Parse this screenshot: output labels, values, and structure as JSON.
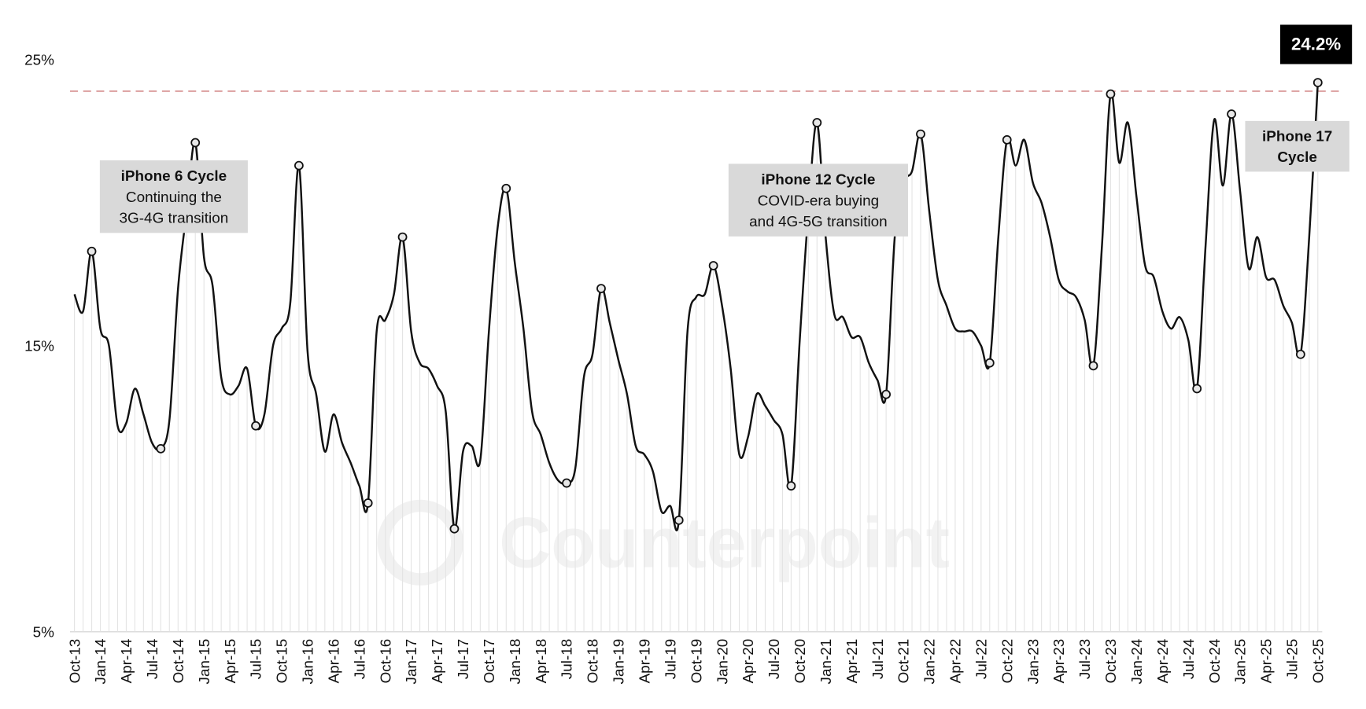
{
  "chart_data": {
    "type": "line",
    "categories": [
      "Oct-13",
      null,
      null,
      "Jan-14",
      null,
      null,
      "Apr-14",
      null,
      null,
      "Jul-14",
      null,
      null,
      "Oct-14",
      null,
      null,
      "Jan-15",
      null,
      null,
      "Apr-15",
      null,
      null,
      "Jul-15",
      null,
      null,
      "Oct-15",
      null,
      null,
      "Jan-16",
      null,
      null,
      "Apr-16",
      null,
      null,
      "Jul-16",
      null,
      null,
      "Oct-16",
      null,
      null,
      "Jan-17",
      null,
      null,
      "Apr-17",
      null,
      null,
      "Jul-17",
      null,
      null,
      "Oct-17",
      null,
      null,
      "Jan-18",
      null,
      null,
      "Apr-18",
      null,
      null,
      "Jul-18",
      null,
      null,
      "Oct-18",
      null,
      null,
      "Jan-19",
      null,
      null,
      "Apr-19",
      null,
      null,
      "Jul-19",
      null,
      null,
      "Oct-19",
      null,
      null,
      "Jan-20",
      null,
      null,
      "Apr-20",
      null,
      null,
      "Jul-20",
      null,
      null,
      "Oct-20",
      null,
      null,
      "Jan-21",
      null,
      null,
      "Apr-21",
      null,
      null,
      "Jul-21",
      null,
      null,
      "Oct-21",
      null,
      null,
      "Jan-22",
      null,
      null,
      "Apr-22",
      null,
      null,
      "Jul-22",
      null,
      null,
      "Oct-22",
      null,
      null,
      "Jan-23",
      null,
      null,
      "Apr-23",
      null,
      null,
      "Jul-23",
      null,
      null,
      "Oct-23",
      null,
      null,
      "Jan-24",
      null,
      null,
      "Apr-24",
      null,
      null,
      "Jul-24",
      null,
      null,
      "Oct-24",
      null,
      null,
      "Jan-25",
      null,
      null,
      "Apr-25",
      null,
      null,
      "Jul-25",
      null,
      null,
      "Oct-25"
    ],
    "values": [
      16.8,
      16.2,
      18.3,
      15.6,
      15.0,
      12.2,
      12.3,
      13.5,
      12.6,
      11.6,
      11.4,
      12.4,
      17.0,
      19.7,
      22.1,
      18.1,
      17.1,
      13.9,
      13.3,
      13.6,
      14.2,
      12.2,
      12.6,
      15.0,
      15.6,
      16.5,
      21.3,
      14.8,
      13.3,
      11.3,
      12.6,
      11.6,
      10.9,
      10.1,
      9.5,
      15.5,
      15.9,
      16.8,
      18.8,
      15.5,
      14.4,
      14.2,
      13.6,
      12.7,
      8.6,
      11.3,
      11.5,
      11.0,
      15.5,
      19.1,
      20.5,
      17.9,
      15.6,
      12.7,
      11.9,
      10.9,
      10.3,
      10.2,
      10.7,
      13.9,
      14.7,
      17.0,
      15.8,
      14.5,
      13.3,
      11.5,
      11.2,
      10.6,
      9.2,
      9.4,
      8.9,
      15.5,
      16.7,
      16.8,
      17.8,
      16.4,
      14.2,
      11.2,
      11.8,
      13.3,
      12.9,
      12.4,
      11.9,
      10.1,
      15.2,
      19.7,
      22.8,
      18.8,
      16.1,
      16.0,
      15.3,
      15.3,
      14.4,
      13.8,
      13.3,
      18.8,
      20.7,
      21.1,
      22.4,
      19.7,
      17.3,
      16.4,
      15.6,
      15.5,
      15.5,
      15.0,
      14.4,
      18.8,
      22.2,
      21.3,
      22.2,
      20.7,
      20.0,
      18.8,
      17.3,
      16.9,
      16.7,
      15.9,
      14.3,
      18.5,
      23.8,
      21.4,
      22.8,
      20.2,
      17.8,
      17.4,
      16.2,
      15.6,
      16.0,
      15.2,
      13.5,
      18.5,
      22.9,
      20.6,
      23.1,
      20.4,
      17.7,
      18.8,
      17.4,
      17.3,
      16.4,
      15.8,
      14.7,
      18.8,
      24.2
    ],
    "value_labels": [
      null,
      null,
      null,
      null,
      null,
      null,
      null,
      null,
      null,
      null,
      null,
      null,
      null,
      null,
      null,
      null,
      null,
      null,
      null,
      null,
      null,
      null,
      null,
      null,
      null,
      null,
      null,
      null,
      null,
      null,
      null,
      null,
      null,
      null,
      null,
      null,
      null,
      null,
      null,
      null,
      null,
      null,
      null,
      null,
      null,
      null,
      null,
      null,
      null,
      null,
      null,
      null,
      null,
      null,
      null,
      null,
      null,
      null,
      null,
      null,
      null,
      null,
      null,
      null,
      null,
      null,
      null,
      null,
      null,
      null,
      null,
      null,
      null,
      null,
      null,
      null,
      null,
      null,
      null,
      null,
      null,
      null,
      null,
      null,
      null,
      null,
      null,
      null,
      null,
      null,
      null,
      null,
      null,
      null,
      null,
      null,
      null,
      null,
      null,
      null,
      null,
      null,
      null,
      null,
      null,
      null,
      null,
      null,
      null,
      null,
      null,
      null,
      null,
      null,
      null,
      null,
      null,
      null,
      null,
      null,
      null,
      null,
      null,
      null,
      null,
      null,
      null,
      null,
      null,
      null,
      null,
      null,
      null,
      null,
      null,
      null,
      null,
      null,
      null,
      null,
      null,
      null,
      null,
      null,
      "24.2%"
    ],
    "color": "#111111",
    "marker_indices": [
      2,
      10,
      14,
      21,
      26,
      34,
      38,
      44,
      50,
      57,
      61,
      70,
      74,
      83,
      86,
      94,
      98,
      106,
      108,
      118,
      120,
      130,
      134,
      142,
      144
    ],
    "ylim": [
      5,
      25
    ],
    "yticks": [
      {
        "value": 5,
        "label": "5%"
      },
      {
        "value": 15,
        "label": "15%"
      },
      {
        "value": 25,
        "label": "25%"
      }
    ],
    "reference_line": {
      "value": 23.9,
      "color": "#d99a9a"
    },
    "annotations": [
      {
        "bold": [
          "iPhone 6 Cycle"
        ],
        "text": [
          "Continuing the",
          "3G-4G transition"
        ]
      },
      {
        "bold": [
          "iPhone 12 Cycle"
        ],
        "text": [
          "COVID-era buying",
          "and 4G-5G transition"
        ]
      },
      {
        "bold": [
          "iPhone 17",
          "Cycle"
        ]
      }
    ],
    "watermark": "Counterpoint"
  }
}
